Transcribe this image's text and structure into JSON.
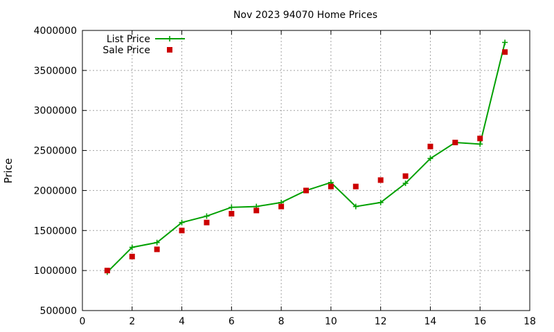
{
  "chart_data": {
    "type": "line",
    "title": "Nov 2023 94070 Home Prices",
    "xlabel": "",
    "ylabel": "Price",
    "xlim": [
      0,
      18
    ],
    "ylim": [
      500000,
      4000000
    ],
    "xticks": [
      0,
      2,
      4,
      6,
      8,
      10,
      12,
      14,
      16,
      18
    ],
    "yticks": [
      500000,
      1000000,
      1500000,
      2000000,
      2500000,
      3000000,
      3500000,
      4000000
    ],
    "grid": true,
    "legend_position": "top-left",
    "series": [
      {
        "name": "List Price",
        "type": "line",
        "marker": "plus",
        "color": "#00a000",
        "x": [
          1,
          2,
          3,
          4,
          5,
          6,
          7,
          8,
          9,
          10,
          11,
          12,
          13,
          14,
          15,
          16,
          17
        ],
        "values": [
          980000,
          1290000,
          1350000,
          1600000,
          1680000,
          1790000,
          1800000,
          1850000,
          2000000,
          2100000,
          1800000,
          1850000,
          2090000,
          2400000,
          2600000,
          2580000,
          3850000
        ]
      },
      {
        "name": "Sale Price",
        "type": "scatter",
        "marker": "square",
        "color": "#cc0000",
        "x": [
          1,
          2,
          3,
          4,
          5,
          6,
          7,
          8,
          9,
          10,
          11,
          12,
          13,
          14,
          15,
          16,
          17
        ],
        "values": [
          1000000,
          1175000,
          1265000,
          1500000,
          1600000,
          1710000,
          1750000,
          1800000,
          2000000,
          2050000,
          2050000,
          2130000,
          2180000,
          2550000,
          2600000,
          2650000,
          3730000
        ]
      }
    ]
  }
}
